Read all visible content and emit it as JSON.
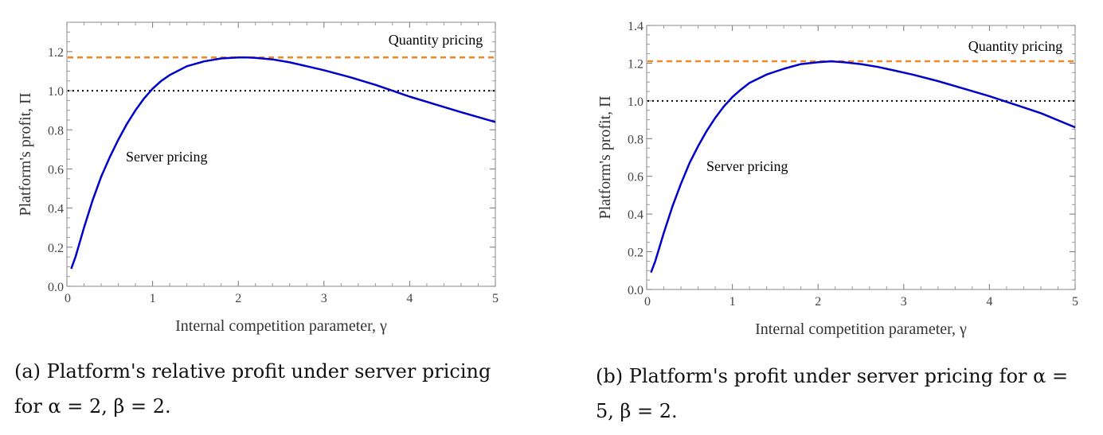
{
  "chart_data": [
    {
      "type": "line",
      "xlabel": "Internal competition parameter, γ",
      "ylabel": "Platform's profit, Π",
      "xlim": [
        0,
        5
      ],
      "ylim": [
        0,
        1.35
      ],
      "xticks": [
        "0",
        "1",
        "2",
        "3",
        "4",
        "5"
      ],
      "yticks": [
        "0.0",
        "0.2",
        "0.4",
        "0.6",
        "0.8",
        "1.0",
        "1.2"
      ],
      "ytick_values": [
        0,
        0.2,
        0.4,
        0.6,
        0.8,
        1.0,
        1.2
      ],
      "series": [
        {
          "name": "Server pricing",
          "color": "#0000cc",
          "x": [
            0.05,
            0.1,
            0.2,
            0.3,
            0.4,
            0.5,
            0.6,
            0.7,
            0.8,
            0.9,
            1.0,
            1.1,
            1.2,
            1.4,
            1.6,
            1.8,
            2.0,
            2.1,
            2.2,
            2.4,
            2.6,
            2.8,
            3.0,
            3.3,
            3.6,
            3.8,
            4.0,
            4.3,
            4.6,
            5.0
          ],
          "y": [
            0.09,
            0.15,
            0.3,
            0.44,
            0.56,
            0.66,
            0.75,
            0.83,
            0.9,
            0.96,
            1.01,
            1.05,
            1.08,
            1.125,
            1.15,
            1.165,
            1.17,
            1.17,
            1.168,
            1.16,
            1.145,
            1.125,
            1.105,
            1.07,
            1.03,
            1.0,
            0.97,
            0.93,
            0.89,
            0.84
          ]
        }
      ],
      "reference_lines": [
        {
          "label": "Quantity pricing",
          "y": 1.17,
          "color": "#ee8a22",
          "style": "dashed"
        },
        {
          "label": "",
          "y": 1.0,
          "color": "#000000",
          "style": "dotted"
        }
      ],
      "annotations": [
        "Quantity pricing",
        "Server pricing"
      ],
      "caption": "(a) Platform's relative profit under server pricing for α = 2, β = 2."
    },
    {
      "type": "line",
      "xlabel": "Internal competition parameter, γ",
      "ylabel": "Platform's profit, Π",
      "xlim": [
        0,
        5
      ],
      "ylim": [
        0,
        1.4
      ],
      "xticks": [
        "0",
        "1",
        "2",
        "3",
        "4",
        "5"
      ],
      "yticks": [
        "0.0",
        "0.2",
        "0.4",
        "0.6",
        "0.8",
        "1.0",
        "1.2",
        "1.4"
      ],
      "ytick_values": [
        0,
        0.2,
        0.4,
        0.6,
        0.8,
        1.0,
        1.2,
        1.4
      ],
      "series": [
        {
          "name": "Server pricing",
          "color": "#0000cc",
          "x": [
            0.05,
            0.1,
            0.2,
            0.3,
            0.4,
            0.5,
            0.6,
            0.7,
            0.8,
            0.9,
            1.0,
            1.1,
            1.2,
            1.4,
            1.6,
            1.8,
            2.0,
            2.15,
            2.3,
            2.5,
            2.7,
            2.9,
            3.1,
            3.4,
            3.7,
            4.0,
            4.1,
            4.3,
            4.6,
            5.0
          ],
          "y": [
            0.09,
            0.15,
            0.3,
            0.44,
            0.56,
            0.67,
            0.76,
            0.84,
            0.91,
            0.97,
            1.02,
            1.06,
            1.095,
            1.14,
            1.17,
            1.195,
            1.205,
            1.21,
            1.205,
            1.195,
            1.18,
            1.16,
            1.14,
            1.105,
            1.065,
            1.025,
            1.01,
            0.98,
            0.935,
            0.86
          ]
        }
      ],
      "reference_lines": [
        {
          "label": "Quantity pricing",
          "y": 1.21,
          "color": "#ee8a22",
          "style": "dashed"
        },
        {
          "label": "",
          "y": 1.0,
          "color": "#000000",
          "style": "dotted"
        }
      ],
      "annotations": [
        "Quantity pricing",
        "Server pricing"
      ],
      "caption": "(b) Platform's profit under server pricing for α = 5, β = 2."
    }
  ],
  "captions": {
    "a_line1": "(a) Platform's relative profit under server pricing",
    "a_line2": "for α = 2, β = 2.",
    "b_line1": "(b) Platform's profit under server pricing for α =",
    "b_line2": "5, β = 2."
  }
}
